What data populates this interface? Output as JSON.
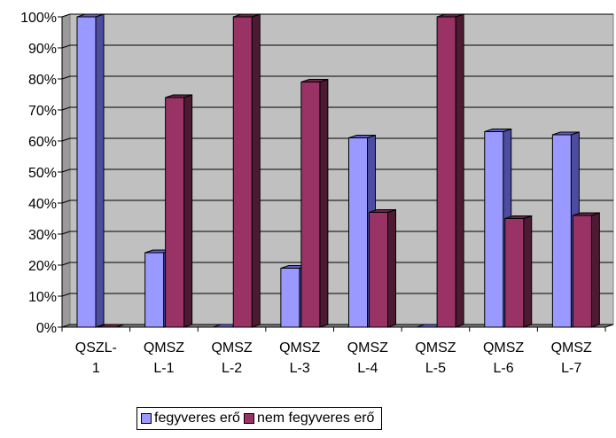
{
  "chart_data": {
    "type": "bar",
    "categories": [
      [
        "QSZL-",
        "1"
      ],
      [
        "QMSZ",
        "L-1"
      ],
      [
        "QMSZ",
        "L-2"
      ],
      [
        "QMSZ",
        "L-3"
      ],
      [
        "QMSZ",
        "L-4"
      ],
      [
        "QMSZ",
        "L-5"
      ],
      [
        "QMSZ",
        "L-6"
      ],
      [
        "QMSZ",
        "L-7"
      ]
    ],
    "series": [
      {
        "name": "fegyveres erő",
        "values": [
          100,
          24,
          0,
          19,
          61,
          0,
          63,
          62
        ],
        "color": "#9999ff",
        "side_color": "#4c4ca0",
        "top_color": "#5f5fcc"
      },
      {
        "name": "nem fegyveres erő",
        "values": [
          0,
          74,
          100,
          79,
          37,
          100,
          35,
          36
        ],
        "color": "#993366",
        "side_color": "#4d1a33",
        "top_color": "#6b2447"
      }
    ],
    "y_ticks": [
      "0%",
      "10%",
      "20%",
      "30%",
      "40%",
      "50%",
      "60%",
      "70%",
      "80%",
      "90%",
      "100%"
    ],
    "ylim": [
      0,
      100
    ],
    "grid": true,
    "legend_position": "bottom",
    "plot_background": "#c0c0c0"
  }
}
